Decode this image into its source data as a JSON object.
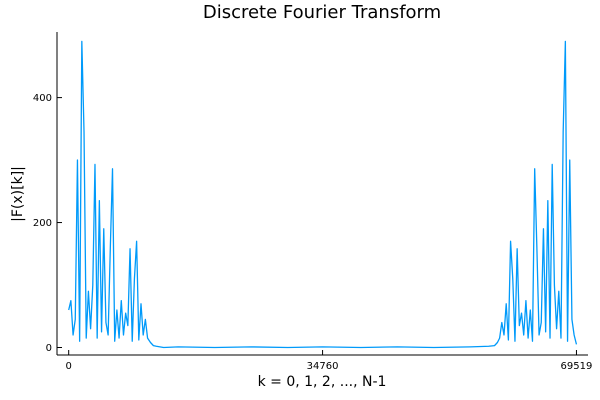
{
  "chart_data": {
    "type": "line",
    "title": "Discrete Fourier Transform",
    "xlabel": "k = 0, 1, 2, ..., N-1",
    "ylabel": "|F(x)[k]|",
    "xlim": [
      -1600,
      71100
    ],
    "ylim": [
      -12,
      505
    ],
    "xticks": [
      {
        "value": 0,
        "label": "0"
      },
      {
        "value": 34760,
        "label": "34760"
      },
      {
        "value": 69519,
        "label": "69519"
      }
    ],
    "yticks": [
      {
        "value": 0,
        "label": "0"
      },
      {
        "value": 200,
        "label": "200"
      },
      {
        "value": 400,
        "label": "400"
      }
    ],
    "grid": false,
    "legend": "none",
    "series_color": "#009AFA",
    "series": [
      {
        "x": [
          0,
          300,
          600,
          900,
          1200,
          1500,
          1800,
          2100,
          2400,
          2700,
          3000,
          3300,
          3600,
          3900,
          4200,
          4500,
          4800,
          5100,
          5400,
          5700,
          6000,
          6300,
          6600,
          6900,
          7200,
          7500,
          7800,
          8100,
          8400,
          8700,
          9000,
          9300,
          9600,
          9900,
          10200,
          10500,
          10800,
          11200,
          11600,
          12000,
          13000,
          15000,
          20000,
          25000,
          30000,
          34760,
          40000,
          45000,
          50000,
          55000,
          57500,
          58300,
          58700,
          59000,
          59300,
          59600,
          59900,
          60200,
          60500,
          60800,
          61100,
          61400,
          61700,
          62000,
          62300,
          62600,
          62900,
          63200,
          63500,
          63800,
          64100,
          64400,
          64700,
          65000,
          65300,
          65600,
          65900,
          66200,
          66500,
          66800,
          67100,
          67400,
          67700,
          68000,
          68300,
          68600,
          68900,
          69200,
          69519
        ],
        "y": [
          60,
          75,
          20,
          45,
          300,
          10,
          490,
          345,
          15,
          90,
          30,
          100,
          293,
          15,
          235,
          25,
          190,
          40,
          20,
          160,
          286,
          10,
          60,
          15,
          75,
          20,
          55,
          35,
          158,
          10,
          110,
          170,
          12,
          70,
          20,
          45,
          15,
          8,
          3,
          2,
          0,
          1,
          0,
          1,
          0,
          1,
          0,
          1,
          0,
          1,
          2,
          3,
          8,
          15,
          40,
          20,
          70,
          12,
          170,
          110,
          10,
          158,
          35,
          55,
          20,
          75,
          15,
          60,
          10,
          286,
          160,
          20,
          40,
          190,
          25,
          235,
          15,
          293,
          100,
          30,
          90,
          15,
          345,
          490,
          10,
          300,
          45,
          20,
          5
        ]
      }
    ]
  }
}
